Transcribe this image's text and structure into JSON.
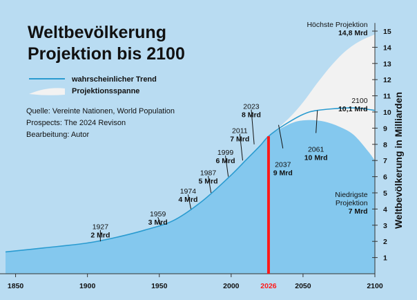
{
  "title_line1": "Weltbevölkerung",
  "title_line2": "Projektion bis 2100",
  "legend": {
    "trend": "wahrscheinlicher Trend",
    "span": "Projektionsspanne"
  },
  "source": {
    "line1": "Quelle: Vereinte Nationen, World Population",
    "line2": "Prospects: The 2024 Revison",
    "line3": "Bearbeitung: Autor"
  },
  "colors": {
    "background": "#b9dcf2",
    "area_fill": "#84c8ee",
    "line": "#2a9bd0",
    "span": "#f2f2f2",
    "marker": "#ff1a1a"
  },
  "chart_data": {
    "type": "area",
    "ylabel": "Weltbevölkerung in Milliarden",
    "xlim": [
      1843,
      2100
    ],
    "ylim": [
      0,
      15.5
    ],
    "x_ticks": [
      "1850",
      "1900",
      "1950",
      "2000",
      "2050",
      "2100"
    ],
    "y_ticks": [
      "1",
      "2",
      "3",
      "4",
      "5",
      "6",
      "7",
      "8",
      "9",
      "10",
      "11",
      "12",
      "13",
      "14",
      "15"
    ],
    "marker": {
      "x": 2026,
      "label": "2026"
    },
    "trend": {
      "x": [
        1843,
        1870,
        1900,
        1920,
        1940,
        1960,
        1980,
        2000,
        2010,
        2020,
        2026,
        2037,
        2050,
        2060,
        2080,
        2090,
        2100
      ],
      "y": [
        1.35,
        1.6,
        1.9,
        2.25,
        2.7,
        3.3,
        4.5,
        6.1,
        7.0,
        7.9,
        8.5,
        9.2,
        9.85,
        10.1,
        10.25,
        10.22,
        10.1
      ]
    },
    "high": {
      "x": [
        2026,
        2040,
        2050,
        2060,
        2070,
        2080,
        2090,
        2100
      ],
      "y": [
        8.5,
        9.6,
        10.6,
        11.8,
        12.9,
        13.8,
        14.4,
        14.8
      ]
    },
    "low": {
      "x": [
        2026,
        2035,
        2045,
        2055,
        2065,
        2075,
        2085,
        2095,
        2100
      ],
      "y": [
        8.5,
        9.0,
        9.4,
        9.5,
        9.4,
        9.1,
        8.6,
        7.6,
        7.0
      ]
    },
    "annotations": [
      {
        "year": "1927",
        "value": "2 Mrd",
        "x": 1909,
        "y": 2.0,
        "tx": 1909,
        "ty": 2.75,
        "line_top": 2.7,
        "anchor": "middle"
      },
      {
        "year": "1959",
        "value": "3 Mrd",
        "x": 1951,
        "y": 3.0,
        "tx": 1949,
        "ty": 3.55,
        "line_top": 3.5,
        "anchor": "middle"
      },
      {
        "year": "1974",
        "value": "4 Mrd",
        "x": 1972,
        "y": 4.0,
        "tx": 1970,
        "ty": 4.95,
        "line_top": 4.9,
        "anchor": "middle"
      },
      {
        "year": "1987",
        "value": "5 Mrd",
        "x": 1986,
        "y": 5.0,
        "tx": 1984,
        "ty": 6.1,
        "line_top": 6.05,
        "anchor": "middle"
      },
      {
        "year": "1999",
        "value": "6 Mrd",
        "x": 1998,
        "y": 6.0,
        "tx": 1996,
        "ty": 7.35,
        "line_top": 7.3,
        "anchor": "middle"
      },
      {
        "year": "2011",
        "value": "7 Mrd",
        "x": 2008,
        "y": 7.0,
        "tx": 2006,
        "ty": 8.7,
        "line_top": 8.65,
        "anchor": "middle"
      },
      {
        "year": "2023",
        "value": "8 Mrd",
        "x": 2016,
        "y": 8.0,
        "tx": 2014,
        "ty": 10.2,
        "line_top": 10.15,
        "anchor": "middle"
      },
      {
        "year": "2037",
        "value": "9 Mrd",
        "x": 2033,
        "y": 9.2,
        "tx": 2036,
        "ty": 6.6,
        "line_bottom": 7.75,
        "anchor": "middle"
      },
      {
        "year": "2061",
        "value": "10 Mrd",
        "x": 2060,
        "y": 10.1,
        "tx": 2059,
        "ty": 7.55,
        "line_bottom": 8.7,
        "anchor": "middle"
      },
      {
        "year": "2100",
        "value": "10,1 Mrd",
        "x": 2100,
        "y": 10.1,
        "tx": 2095,
        "ty": 10.55,
        "anchor": "end",
        "no_line": true
      },
      {
        "year": "Höchste Projektion",
        "value": "14,8 Mrd",
        "x": 2100,
        "y": 14.8,
        "tx": 2095,
        "ty": 15.25,
        "anchor": "end",
        "no_line": true
      },
      {
        "year": "Niedrigste",
        "year2": "Projektion",
        "value": "7 Mrd",
        "x": 2100,
        "y": 7.0,
        "tx": 2095,
        "ty": 4.75,
        "anchor": "end",
        "no_line": true
      }
    ]
  }
}
